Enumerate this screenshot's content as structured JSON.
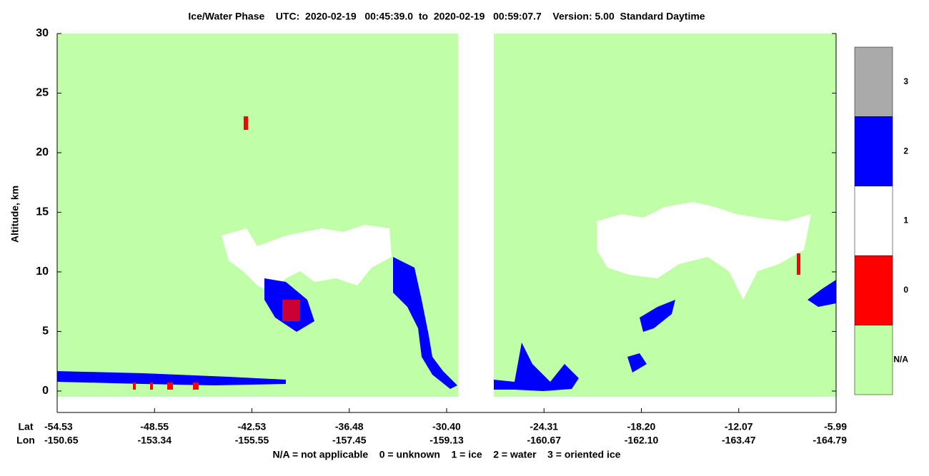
{
  "chart_data": {
    "type": "heatmap",
    "title": "Ice/Water Phase    UTC:  2020-02-19   00:45:39.0  to  2020-02-19   00:59:07.7    Version: 5.00  Standard Daytime",
    "y_label": "Altitude, km",
    "ylim": [
      -1.8,
      30
    ],
    "yticks": [
      0,
      5,
      10,
      15,
      20,
      25,
      30
    ],
    "x_rows": [
      {
        "name": "Lat",
        "labels": [
          "-54.53",
          "-48.55",
          "-42.53",
          "-36.48",
          "-30.40",
          "-24.31",
          "-18.20",
          "-12.07",
          "-5.99"
        ]
      },
      {
        "name": "Lon",
        "labels": [
          "-150.65",
          "-153.34",
          "-155.55",
          "-157.45",
          "-159.13",
          "-160.67",
          "-162.10",
          "-163.47",
          "-164.79"
        ]
      }
    ],
    "colorbar": [
      {
        "label": "3",
        "color": "#aaaaaa"
      },
      {
        "label": "2",
        "color": "#0000ff"
      },
      {
        "label": "1",
        "color": "#ffffff"
      },
      {
        "label": "0",
        "color": "#ff0000"
      },
      {
        "label": "N/A",
        "color": "#c0ffa8"
      }
    ],
    "footnote": "N/A = not applicable    0 = unknown    1 = ice    2 = water    3 = oriented ice"
  }
}
